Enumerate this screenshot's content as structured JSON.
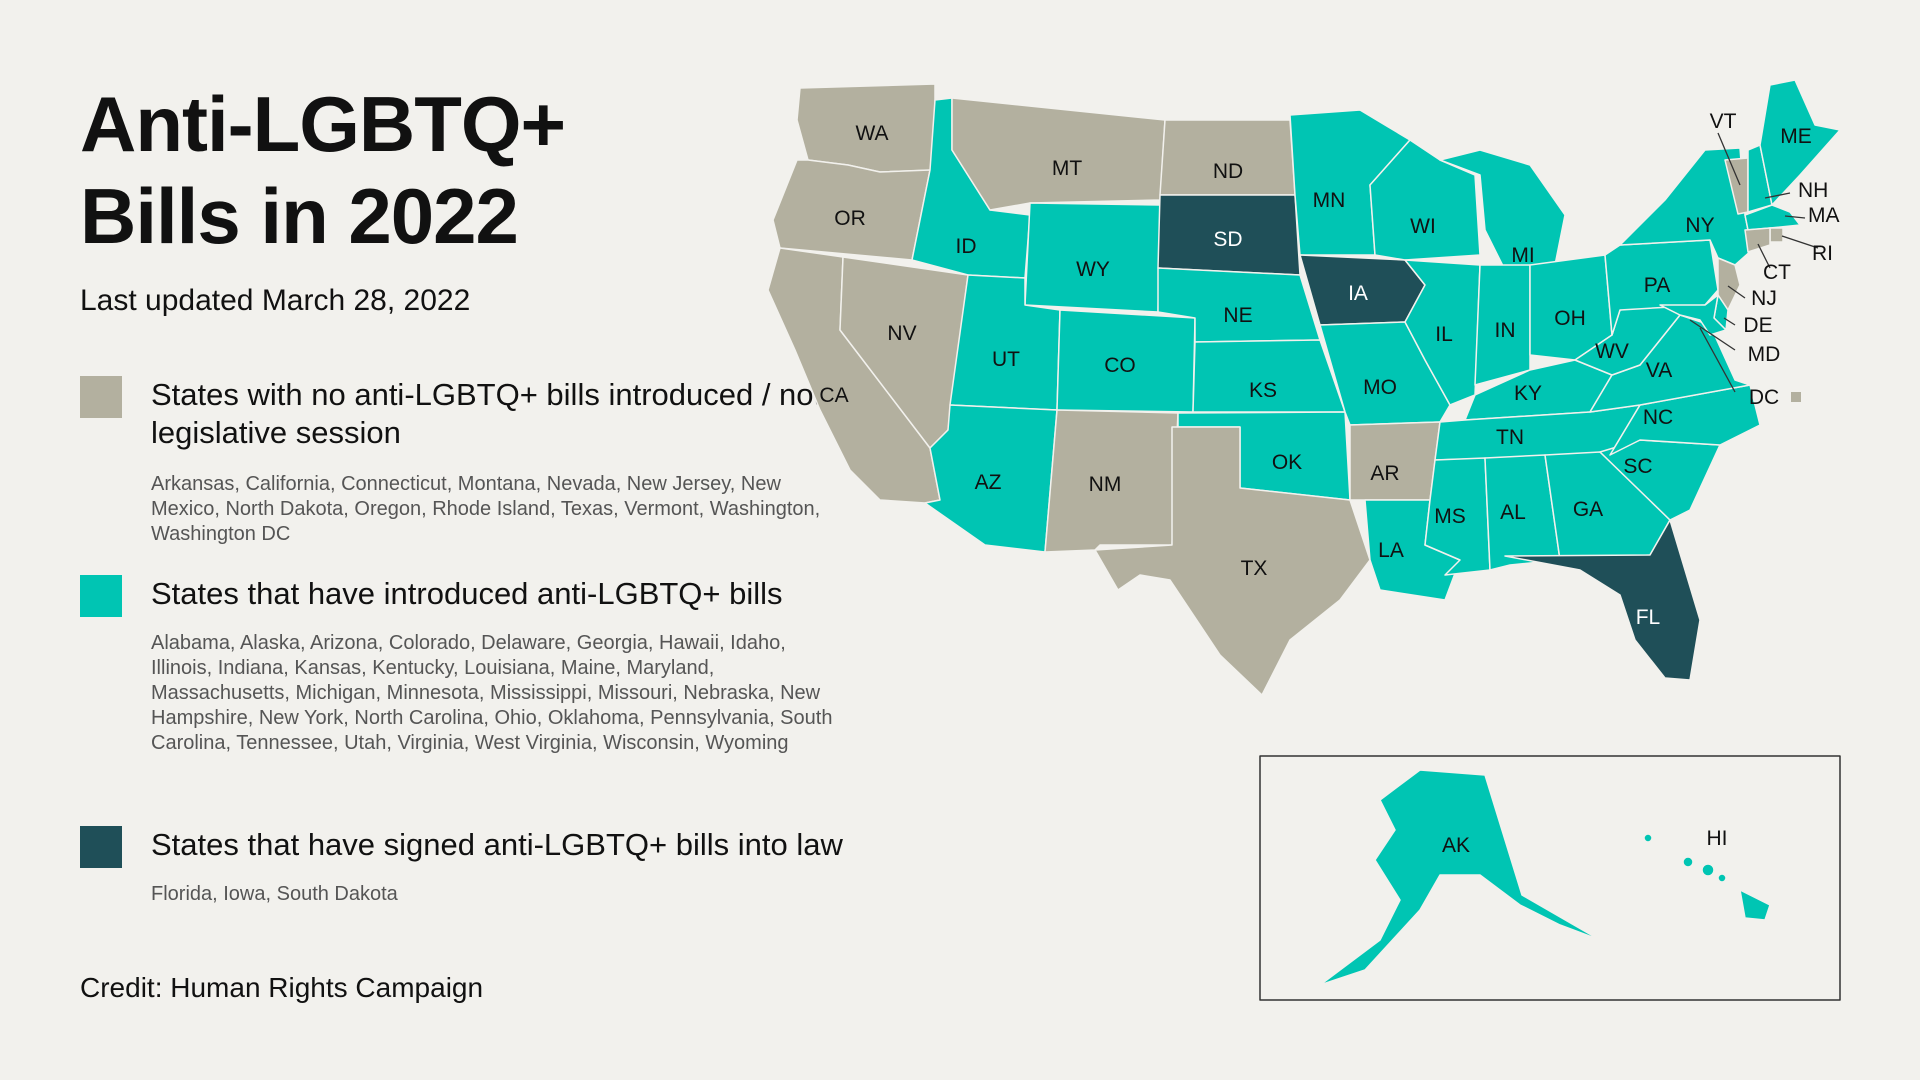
{
  "title": "Anti-LGBTQ+ Bills in 2022",
  "updated": "Last updated March 28, 2022",
  "credit": "Credit: Human Rights Campaign",
  "colors": {
    "none": "#b3b09f",
    "introduced": "#00c5b3",
    "signed": "#1f4f58",
    "background": "#f2f1ed"
  },
  "legend": [
    {
      "key": "none",
      "heading": "States with no anti-LGBTQ+ bills introduced / not in legislative session",
      "states": "Arkansas, California, Connecticut, Montana, Nevada, New Jersey, New Mexico, North Dakota, Oregon, Rhode Island, Texas, Vermont, Washington, Washington DC"
    },
    {
      "key": "introduced",
      "heading": "States that have introduced anti-LGBTQ+ bills",
      "states": "Alabama, Alaska, Arizona, Colorado, Delaware, Georgia, Hawaii, Idaho, Illinois, Indiana, Kansas, Kentucky, Louisiana, Maine, Maryland, Massachusetts, Michigan, Minnesota, Mississippi, Missouri, Nebraska, New Hampshire, New York, North Carolina, Ohio, Oklahoma, Pennsylvania, South Carolina, Tennessee, Utah, Virginia, West Virginia, Wisconsin, Wyoming"
    },
    {
      "key": "signed",
      "heading": "States that have signed anti-LGBTQ+ bills into law",
      "states": "Florida, Iowa, South Dakota"
    }
  ],
  "map_states": [
    {
      "abbr": "WA",
      "status": "none"
    },
    {
      "abbr": "OR",
      "status": "none"
    },
    {
      "abbr": "CA",
      "status": "none"
    },
    {
      "abbr": "NV",
      "status": "none"
    },
    {
      "abbr": "ID",
      "status": "introduced"
    },
    {
      "abbr": "MT",
      "status": "none"
    },
    {
      "abbr": "WY",
      "status": "introduced"
    },
    {
      "abbr": "UT",
      "status": "introduced"
    },
    {
      "abbr": "AZ",
      "status": "introduced"
    },
    {
      "abbr": "CO",
      "status": "introduced"
    },
    {
      "abbr": "NM",
      "status": "none"
    },
    {
      "abbr": "ND",
      "status": "none"
    },
    {
      "abbr": "SD",
      "status": "signed"
    },
    {
      "abbr": "NE",
      "status": "introduced"
    },
    {
      "abbr": "KS",
      "status": "introduced"
    },
    {
      "abbr": "OK",
      "status": "introduced"
    },
    {
      "abbr": "TX",
      "status": "none"
    },
    {
      "abbr": "MN",
      "status": "introduced"
    },
    {
      "abbr": "IA",
      "status": "signed"
    },
    {
      "abbr": "MO",
      "status": "introduced"
    },
    {
      "abbr": "AR",
      "status": "none"
    },
    {
      "abbr": "LA",
      "status": "introduced"
    },
    {
      "abbr": "WI",
      "status": "introduced"
    },
    {
      "abbr": "IL",
      "status": "introduced"
    },
    {
      "abbr": "MI",
      "status": "introduced"
    },
    {
      "abbr": "IN",
      "status": "introduced"
    },
    {
      "abbr": "OH",
      "status": "introduced"
    },
    {
      "abbr": "KY",
      "status": "introduced"
    },
    {
      "abbr": "TN",
      "status": "introduced"
    },
    {
      "abbr": "MS",
      "status": "introduced"
    },
    {
      "abbr": "AL",
      "status": "introduced"
    },
    {
      "abbr": "GA",
      "status": "introduced"
    },
    {
      "abbr": "FL",
      "status": "signed"
    },
    {
      "abbr": "SC",
      "status": "introduced"
    },
    {
      "abbr": "NC",
      "status": "introduced"
    },
    {
      "abbr": "VA",
      "status": "introduced"
    },
    {
      "abbr": "WV",
      "status": "introduced"
    },
    {
      "abbr": "PA",
      "status": "introduced"
    },
    {
      "abbr": "NY",
      "status": "introduced"
    },
    {
      "abbr": "VT",
      "status": "none"
    },
    {
      "abbr": "NH",
      "status": "introduced"
    },
    {
      "abbr": "ME",
      "status": "introduced"
    },
    {
      "abbr": "MA",
      "status": "introduced"
    },
    {
      "abbr": "RI",
      "status": "none"
    },
    {
      "abbr": "CT",
      "status": "none"
    },
    {
      "abbr": "NJ",
      "status": "none"
    },
    {
      "abbr": "DE",
      "status": "introduced"
    },
    {
      "abbr": "MD",
      "status": "introduced"
    },
    {
      "abbr": "DC",
      "status": "none"
    },
    {
      "abbr": "AK",
      "status": "introduced"
    },
    {
      "abbr": "HI",
      "status": "introduced"
    }
  ]
}
